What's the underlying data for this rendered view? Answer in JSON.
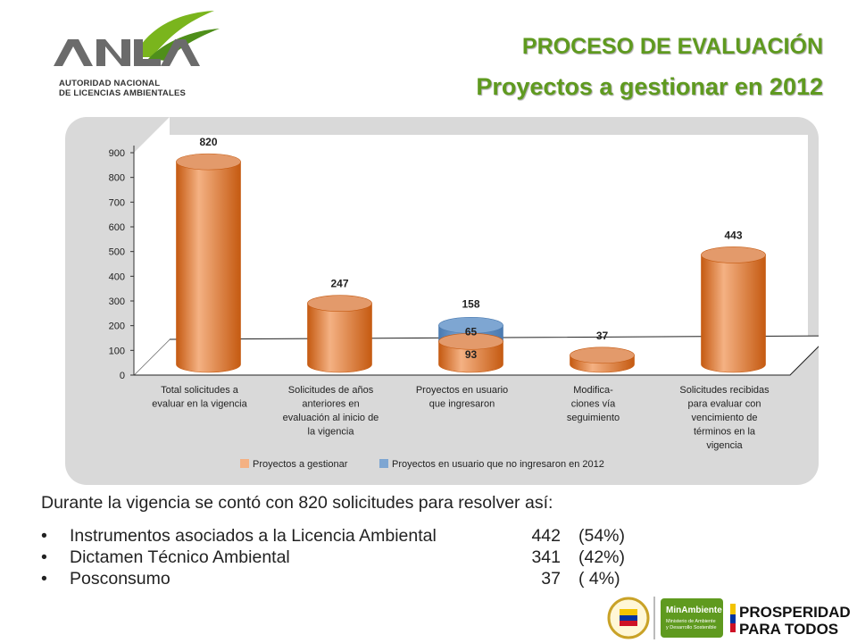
{
  "header": {
    "logo_line1": "AUTORIDAD NACIONAL",
    "logo_line2": "DE LICENCIAS AMBIENTALES",
    "title": "PROCESO DE EVALUACIÓN",
    "subtitle": "Proyectos a gestionar en 2012"
  },
  "chart_data": {
    "type": "bar",
    "y_ticks": [
      "0",
      "100",
      "200",
      "300",
      "400",
      "500",
      "600",
      "700",
      "800",
      "900"
    ],
    "ylim": [
      0,
      900
    ],
    "categories": [
      [
        "Total solicitudes a",
        "evaluar en la vigencia"
      ],
      [
        "Solicitudes de años",
        "anteriores  en",
        "evaluación al inicio de",
        "la vigencia"
      ],
      [
        "Proyectos en usuario",
        "que ingresaron"
      ],
      [
        "Modifica-",
        "ciones vía",
        "seguimiento"
      ],
      [
        "Solicitudes recibidas",
        "para evaluar con",
        "vencimiento de",
        "términos en la",
        "vigencia"
      ]
    ],
    "series": [
      {
        "name": "Proyectos a gestionar",
        "values": [
          820,
          247,
          93,
          37,
          443
        ],
        "labels": [
          "820",
          "247",
          "93",
          "37",
          "443"
        ]
      },
      {
        "name": "Proyectos en usuario que no ingresaron en 2012",
        "values": [
          null,
          null,
          65,
          null,
          null
        ],
        "labels": [
          "",
          "",
          "65",
          "",
          ""
        ]
      }
    ],
    "stack_total_label": "158",
    "stack_total_index": 2,
    "legend_position": "bottom",
    "colors": {
      "series1": "#f4b183",
      "series1_dark": "#c55a11",
      "series2": "#7ea6d2",
      "series2_dark": "#4a7ab0",
      "panel": "#d9d9d9"
    }
  },
  "body": {
    "intro": "Durante la vigencia se contó con 820 solicitudes para resolver así:",
    "items": [
      {
        "label": "Instrumentos asociados a la Licencia Ambiental",
        "value": "442",
        "pct": "(54%)"
      },
      {
        "label": "Dictamen Técnico Ambiental",
        "value": "341",
        "pct": "(42%)"
      },
      {
        "label": "Posconsumo",
        "value": "37",
        "pct": "(  4%)"
      }
    ]
  },
  "footer": {
    "minambiente_name": "MinAmbiente",
    "minambiente_sub1": "Ministerio de Ambiente",
    "minambiente_sub2": "y Desarrollo Sostenible",
    "prosperidad_line1": "PROSPERIDAD",
    "prosperidad_line2": "PARA TODOS"
  }
}
